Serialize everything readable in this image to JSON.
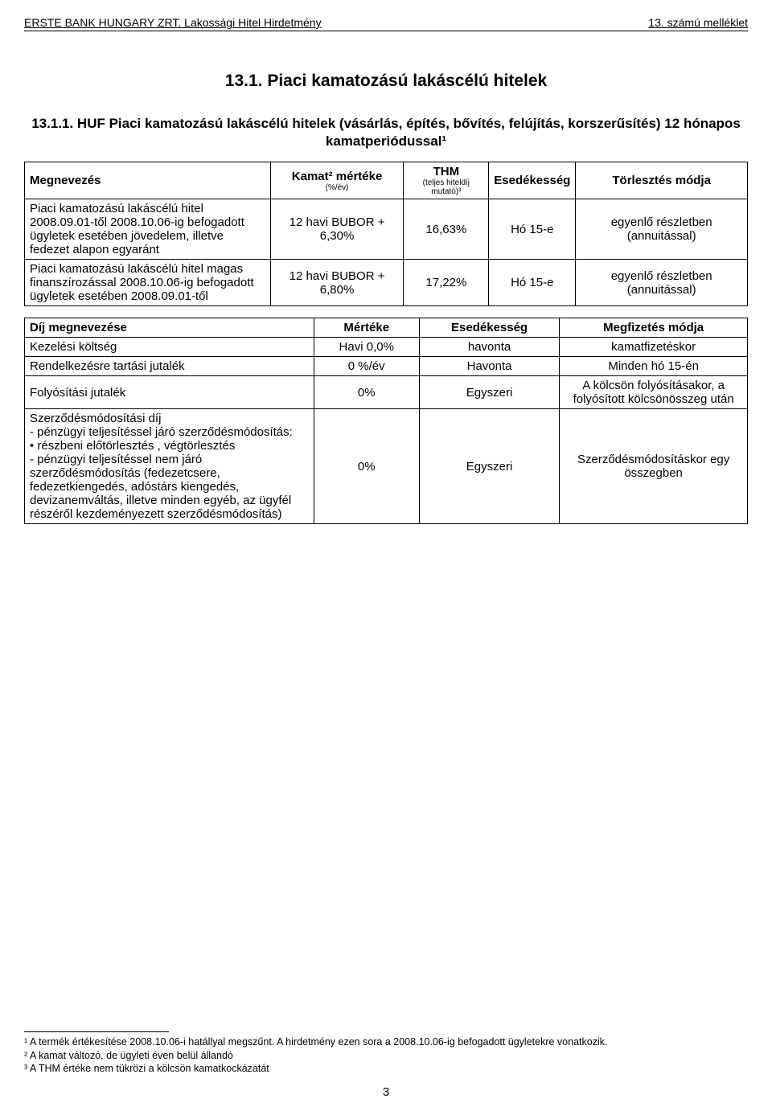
{
  "header": {
    "left": "ERSTE BANK HUNGARY ZRT. Lakossági Hitel Hirdetmény",
    "right": "13. számú melléklet"
  },
  "title": "13.1. Piaci kamatozású lakáscélú hitelek",
  "subtitle": "13.1.1. HUF Piaci kamatozású lakáscélú hitelek (vásárlás, építés, bővítés, felújítás, korszerűsítés) 12 hónapos kamatperiódussal¹",
  "table1": {
    "headers": {
      "name": "Megnevezés",
      "rate": "Kamat² mértéke",
      "rate_sub": "(%/év)",
      "thm": "THM",
      "thm_sub": "(teljes hiteldíj mutató)³",
      "due": "Esedékesség",
      "repay": "Törlesztés módja"
    },
    "rows": [
      {
        "name": "Piaci kamatozású lakáscélú hitel 2008.09.01-től 2008.10.06-ig befogadott ügyletek esetében jövedelem, illetve fedezet alapon egyaránt",
        "rate": "12 havi BUBOR + 6,30%",
        "thm": "16,63%",
        "due": "Hó 15-e",
        "repay": "egyenlő részletben (annuitással)"
      },
      {
        "name": "Piaci kamatozású lakáscélú hitel magas finanszírozással 2008.10.06-ig befogadott ügyletek esetében 2008.09.01-től",
        "rate": "12 havi BUBOR + 6,80%",
        "thm": "17,22%",
        "due": "Hó 15-e",
        "repay": "egyenlő részletben (annuitással)"
      }
    ]
  },
  "table2": {
    "headers": {
      "name": "Díj megnevezése",
      "measure": "Mértéke",
      "due": "Esedékesség",
      "mode": "Megfizetés módja"
    },
    "rows": [
      {
        "name": "Kezelési költség",
        "measure": "Havi 0,0%",
        "due": "havonta",
        "mode": "kamatfizetéskor"
      },
      {
        "name": "Rendelkezésre tartási jutalék",
        "measure": "0 %/év",
        "due": "Havonta",
        "mode": "Minden hó 15-én"
      },
      {
        "name": "Folyósítási jutalék",
        "measure": "0%",
        "due": "Egyszeri",
        "mode": "A kölcsön folyósításakor, a folyósított kölcsönösszeg után"
      },
      {
        "name": "Szerződésmódosítási díj\n- pénzügyi teljesítéssel járó szerződésmódosítás:\n  • részbeni előtörlesztés , végtörlesztés\n- pénzügyi teljesítéssel nem járó szerződésmódosítás (fedezetcsere, fedezetkiengedés, adóstárs kiengedés, devizanemváltás, illetve minden egyéb, az ügyfél részéről kezdeményezett szerződésmódosítás)",
        "measure": "0%",
        "due": "Egyszeri",
        "mode": "Szerződésmódosításkor egy összegben"
      }
    ]
  },
  "footnotes": {
    "fn1": "¹ A termék értékesítése 2008.10.06-i hatállyal megszűnt. A hirdetmény ezen sora a 2008.10.06-ig befogadott ügyletekre vonatkozik.",
    "fn2": "² A kamat változó, de ügyleti éven belül állandó",
    "fn3": "³ A THM értéke nem tükrözi a kölcsön kamatkockázatát"
  },
  "page_number": "3"
}
